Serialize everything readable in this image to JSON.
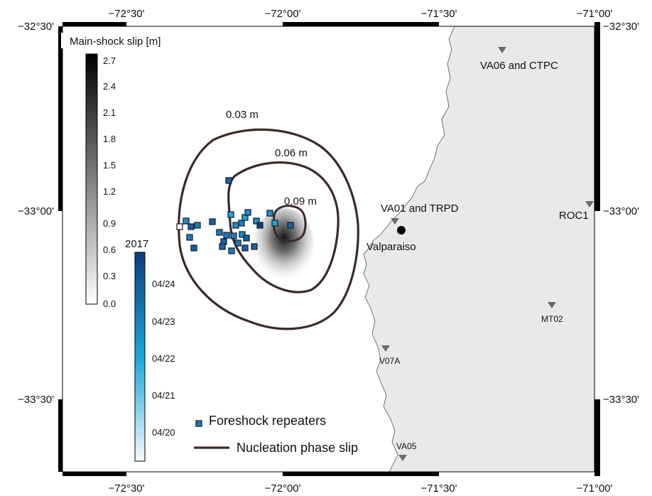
{
  "map": {
    "lon_ticks": [
      "−72°30'",
      "−72°00'",
      "−71°30'",
      "−71°00'"
    ],
    "lat_ticks": [
      "−32°30'",
      "−33°00'",
      "−33°30'"
    ],
    "colors": {
      "land": "#e9e9e9",
      "sea": "#ffffff",
      "contour": "#3a2a26",
      "frame": "#000000"
    }
  },
  "slip_colorbar": {
    "title": "Main-shock slip [m]",
    "ticks": [
      "2.7",
      "2.4",
      "2.1",
      "1.8",
      "1.5",
      "1.2",
      "0.9",
      "0.6",
      "0.3",
      "0.0"
    ]
  },
  "time_colorbar": {
    "title": "2017",
    "ticks": [
      "04/24",
      "04/23",
      "04/22",
      "04/21",
      "04/20"
    ],
    "colors": [
      "#0d3d7a",
      "#1aa7d8",
      "#f5fafd"
    ]
  },
  "contours": [
    {
      "label": "0.03 m"
    },
    {
      "label": "0.06 m"
    },
    {
      "label": "0.09 m"
    }
  ],
  "stations": [
    {
      "name": "VA06 and CTPC",
      "icon": "triangle-down-icon"
    },
    {
      "name": "VA01 and TRPD",
      "icon": "triangle-down-icon"
    },
    {
      "name": "ROC1",
      "icon": "triangle-down-icon"
    },
    {
      "name": "MT02",
      "icon": "triangle-down-icon"
    },
    {
      "name": "V07A",
      "icon": "triangle-down-icon"
    },
    {
      "name": "VA05",
      "icon": "triangle-down-icon"
    }
  ],
  "city": {
    "name": "Valparaiso"
  },
  "legend": {
    "repeaters": "Foreshock repeaters",
    "nucleation": "Nucleation phase slip"
  }
}
